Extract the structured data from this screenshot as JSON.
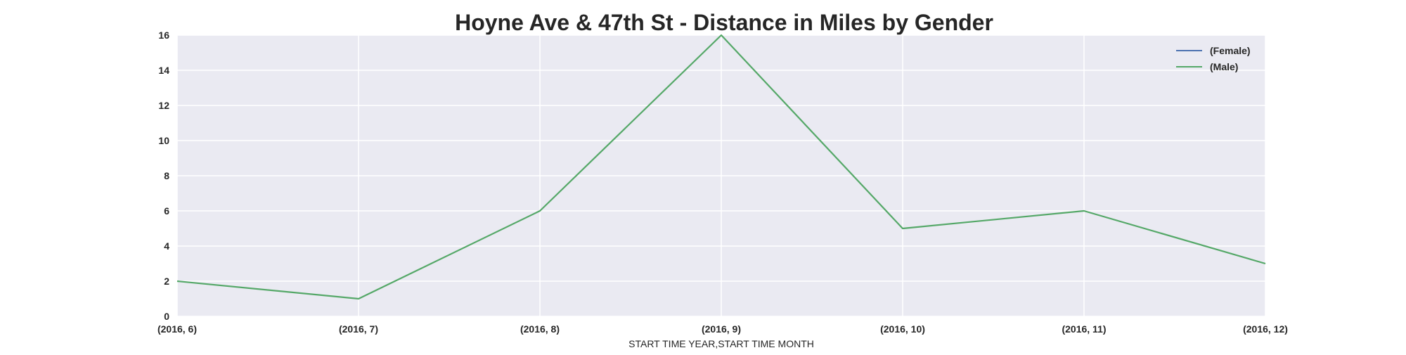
{
  "chart_data": {
    "type": "line",
    "title": "Hoyne Ave & 47th St - Distance in Miles by Gender",
    "xlabel": "START TIME YEAR,START TIME MONTH",
    "ylabel": "",
    "categories": [
      "(2016, 6)",
      "(2016, 7)",
      "(2016, 8)",
      "(2016, 9)",
      "(2016, 10)",
      "(2016, 11)",
      "(2016, 12)"
    ],
    "ylim": [
      0,
      16
    ],
    "yticks": [
      0,
      2,
      4,
      6,
      8,
      10,
      12,
      14,
      16
    ],
    "grid": true,
    "legend_position": "top-right",
    "series": [
      {
        "name": "(Female)",
        "color": "#4C72B0",
        "values": [
          null,
          null,
          null,
          null,
          null,
          null,
          null
        ]
      },
      {
        "name": "(Male)",
        "color": "#55A868",
        "values": [
          2,
          1,
          6,
          16,
          5,
          6,
          3
        ]
      }
    ],
    "background_color": "#EAEAF2",
    "grid_color": "#FFFFFF"
  }
}
